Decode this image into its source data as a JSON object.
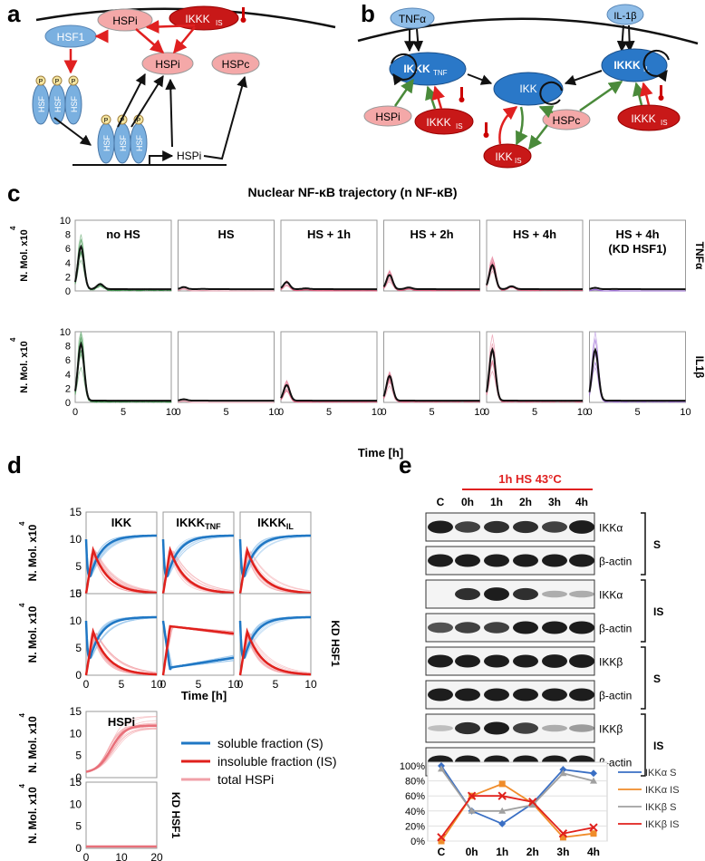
{
  "panel_labels": {
    "a": "a",
    "b": "b",
    "c": "c",
    "d": "d",
    "e": "e"
  },
  "panel_a": {
    "hspi_top": "HSPi",
    "ikkk_is": "IKKK",
    "ikkk_is_sub": "IS",
    "hsf1": "HSF1",
    "hspi_mid": "HSPi",
    "hspc": "HSPc",
    "hsf_label": "HSF",
    "p_label": "P",
    "gene_product": "HSPi"
  },
  "panel_b": {
    "tnfa": "TNFα",
    "il1b": "IL-1β",
    "ikkk_tnf": "IKKK",
    "ikkk_tnf_sub": "TNF",
    "ikk": "IKK",
    "ikkk_il": "IKKK",
    "ikkk_il_sub": "IL",
    "hspi": "HSPi",
    "ikkk_is_left": "IKKK",
    "ikkk_is_left_sub": "IS",
    "hspc": "HSPc",
    "ikkk_is_right": "IKKK",
    "ikkk_is_right_sub": "IS",
    "ikk_is": "IKK",
    "ikk_is_sub": "IS"
  },
  "panel_c": {
    "title": "Nuclear NF-κB trajectory (n NF-κB)",
    "columns": [
      "no HS",
      "HS",
      "HS + 1h",
      "HS + 2h",
      "HS + 4h",
      "HS + 4h"
    ],
    "col6_line2": "(KD HSF1)",
    "rows": [
      "TNFα",
      "IL1β"
    ],
    "ylabel": "N. Mol. x10",
    "ylabel_exp": "4",
    "xlabel": "Time [h]",
    "yticks": [
      "0",
      "2",
      "4",
      "6",
      "8",
      "10"
    ],
    "xticks": [
      "0",
      "5",
      "10"
    ],
    "peaks_tnf": [
      6,
      0.3,
      1,
      2,
      3.4,
      0.2
    ],
    "peaks_il": [
      8,
      0.2,
      2.2,
      3.5,
      7.2,
      7.2
    ],
    "colors": [
      "#2e8b3e",
      "#e8a0b0",
      "#e06080",
      "#e06080",
      "#e06080",
      "#9b6bd6"
    ]
  },
  "panel_d": {
    "columns": [
      "IKK",
      "IKKK",
      "IKKK"
    ],
    "col_subs": [
      "",
      "TNF",
      "IL"
    ],
    "ylabel": "N. Mol. x10",
    "ylabel_exp": "4",
    "yticks": [
      "0",
      "5",
      "10",
      "15"
    ],
    "xticks": [
      "0",
      "5",
      "10"
    ],
    "xlabel": "Time [h]",
    "kd_label": "KD HSF1",
    "hspi_title": "HSPi",
    "hspi_xticks": [
      "0",
      "10",
      "20"
    ],
    "legend": [
      {
        "label": "soluble fraction (S)",
        "color": "#1f77c4"
      },
      {
        "label": "insoluble fraction (IS)",
        "color": "#e0201c"
      },
      {
        "label": "total HSPi",
        "color": "#f0a0a8"
      }
    ]
  },
  "panel_e": {
    "header": "1h HS 43°C",
    "lanes": [
      "C",
      "0h",
      "1h",
      "2h",
      "3h",
      "4h"
    ],
    "blots": [
      "IKKα",
      "β-actin",
      "IKKα",
      "β-actin",
      "IKKβ",
      "β-actin",
      "IKKβ",
      "β-actin"
    ],
    "fractions": [
      "S",
      "IS",
      "S",
      "IS"
    ],
    "chart_yticks": [
      "0%",
      "20%",
      "40%",
      "60%",
      "80%",
      "100%"
    ],
    "chart_xticks": [
      "C",
      "0h",
      "1h",
      "2h",
      "3h",
      "4h"
    ]
  },
  "chart_data": {
    "type": "line",
    "categories": [
      "C",
      "0h",
      "1h",
      "2h",
      "3h",
      "4h"
    ],
    "ylim": [
      0,
      100
    ],
    "series": [
      {
        "name": "IKKα S",
        "color": "#3a6fc4",
        "values": [
          100,
          40,
          23,
          50,
          95,
          90
        ]
      },
      {
        "name": "IKKα  IS",
        "color": "#f08c2a",
        "values": [
          0,
          60,
          76,
          50,
          5,
          10
        ]
      },
      {
        "name": "IKKβ S",
        "color": "#a0a0a0",
        "values": [
          96,
          40,
          40,
          48,
          90,
          80
        ]
      },
      {
        "name": "IKKβ IS",
        "color": "#e0201c",
        "values": [
          5,
          60,
          60,
          52,
          10,
          18
        ]
      }
    ]
  }
}
